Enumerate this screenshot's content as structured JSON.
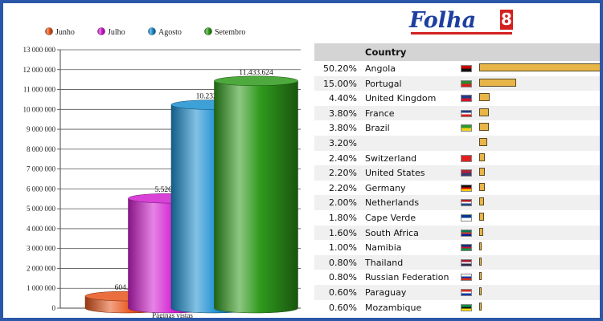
{
  "chart_data": [
    {
      "type": "bar",
      "style": "3d-cylinder",
      "categories": [
        "Páginas vistas"
      ],
      "series": [
        {
          "name": "Junho",
          "value": 604698,
          "label": "604.698",
          "color": "#e8551c"
        },
        {
          "name": "Julho",
          "value": 5526243,
          "label": "5.526.243",
          "color": "#d21fd0"
        },
        {
          "name": "Agosto",
          "value": 10232408,
          "label": "10.232.408",
          "color": "#1b8fd0"
        },
        {
          "name": "Setembro",
          "value": 11433624,
          "label": "11.433.624",
          "color": "#2f9a1c"
        }
      ],
      "xlabel": "Páginas vistas",
      "ylim": [
        0,
        13000000
      ],
      "yticks": [
        {
          "value": 0,
          "label": "0"
        },
        {
          "value": 1000000,
          "label": "1 000 000"
        },
        {
          "value": 2000000,
          "label": "2 000 000"
        },
        {
          "value": 3000000,
          "label": "3 000 000"
        },
        {
          "value": 4000000,
          "label": "4 000 000"
        },
        {
          "value": 5000000,
          "label": "5 000 000"
        },
        {
          "value": 6000000,
          "label": "6 000 000"
        },
        {
          "value": 7000000,
          "label": "7 000 000"
        },
        {
          "value": 8000000,
          "label": "8 000 000"
        },
        {
          "value": 9000000,
          "label": "9 000 000"
        },
        {
          "value": 10000000,
          "label": "10 000 000"
        },
        {
          "value": 11000000,
          "label": "11 000 000"
        },
        {
          "value": 12000000,
          "label": "12 000 000"
        },
        {
          "value": 13000000,
          "label": "13 000 000"
        }
      ],
      "grid": true,
      "legend": "top"
    },
    {
      "type": "table",
      "header": "Country",
      "rows": [
        {
          "percent": 50.2,
          "label": "50.20%",
          "country": "Angola",
          "flag": [
            "#cc0000",
            "#111111"
          ]
        },
        {
          "percent": 15.0,
          "label": "15.00%",
          "country": "Portugal",
          "flag": [
            "#2a8a2a",
            "#d81e1e"
          ]
        },
        {
          "percent": 4.4,
          "label": "4.40%",
          "country": "United Kingdom",
          "flag": [
            "#1f3b8c",
            "#cf142b"
          ]
        },
        {
          "percent": 3.8,
          "label": "3.80%",
          "country": "France",
          "flag": [
            "#1f3b8c",
            "#ffffff",
            "#d81e1e"
          ]
        },
        {
          "percent": 3.8,
          "label": "3.80%",
          "country": "Brazil",
          "flag": [
            "#2a9a2a",
            "#f2d21c"
          ]
        },
        {
          "percent": 3.2,
          "label": "3.20%",
          "country": "",
          "flag": []
        },
        {
          "percent": 2.4,
          "label": "2.40%",
          "country": "Switzerland",
          "flag": [
            "#e02020"
          ]
        },
        {
          "percent": 2.2,
          "label": "2.20%",
          "country": "United States",
          "flag": [
            "#b22234",
            "#3c3b6e"
          ]
        },
        {
          "percent": 2.2,
          "label": "2.20%",
          "country": "Germany",
          "flag": [
            "#111111",
            "#dd0000",
            "#ffce00"
          ]
        },
        {
          "percent": 2.0,
          "label": "2.00%",
          "country": "Netherlands",
          "flag": [
            "#ae1c28",
            "#ffffff",
            "#21468b"
          ]
        },
        {
          "percent": 1.8,
          "label": "1.80%",
          "country": "Cape Verde",
          "flag": [
            "#003893",
            "#ffffff"
          ]
        },
        {
          "percent": 1.6,
          "label": "1.60%",
          "country": "South Africa",
          "flag": [
            "#007a4d",
            "#de3831",
            "#002395"
          ]
        },
        {
          "percent": 1.0,
          "label": "1.00%",
          "country": "Namibia",
          "flag": [
            "#003580",
            "#d21034",
            "#009543"
          ]
        },
        {
          "percent": 0.8,
          "label": "0.80%",
          "country": "Thailand",
          "flag": [
            "#a51931",
            "#f4f5f8",
            "#2d2a4a"
          ]
        },
        {
          "percent": 0.8,
          "label": "0.80%",
          "country": "Russian Federation",
          "flag": [
            "#ffffff",
            "#0039a6",
            "#d52b1e"
          ]
        },
        {
          "percent": 0.6,
          "label": "0.60%",
          "country": "Paraguay",
          "flag": [
            "#d52b1e",
            "#ffffff",
            "#0038a8"
          ]
        },
        {
          "percent": 0.6,
          "label": "0.60%",
          "country": "Mozambique",
          "flag": [
            "#009a44",
            "#111111",
            "#fce100"
          ]
        }
      ]
    }
  ],
  "logo": {
    "text": "Folha",
    "badge": "8",
    "colors": {
      "text": "#1d3fa0",
      "badge": "#d42020"
    }
  },
  "colors": {
    "frame": "#2b57a8",
    "table_bar": "#e8b548",
    "table_header": "#d4d4d4"
  }
}
